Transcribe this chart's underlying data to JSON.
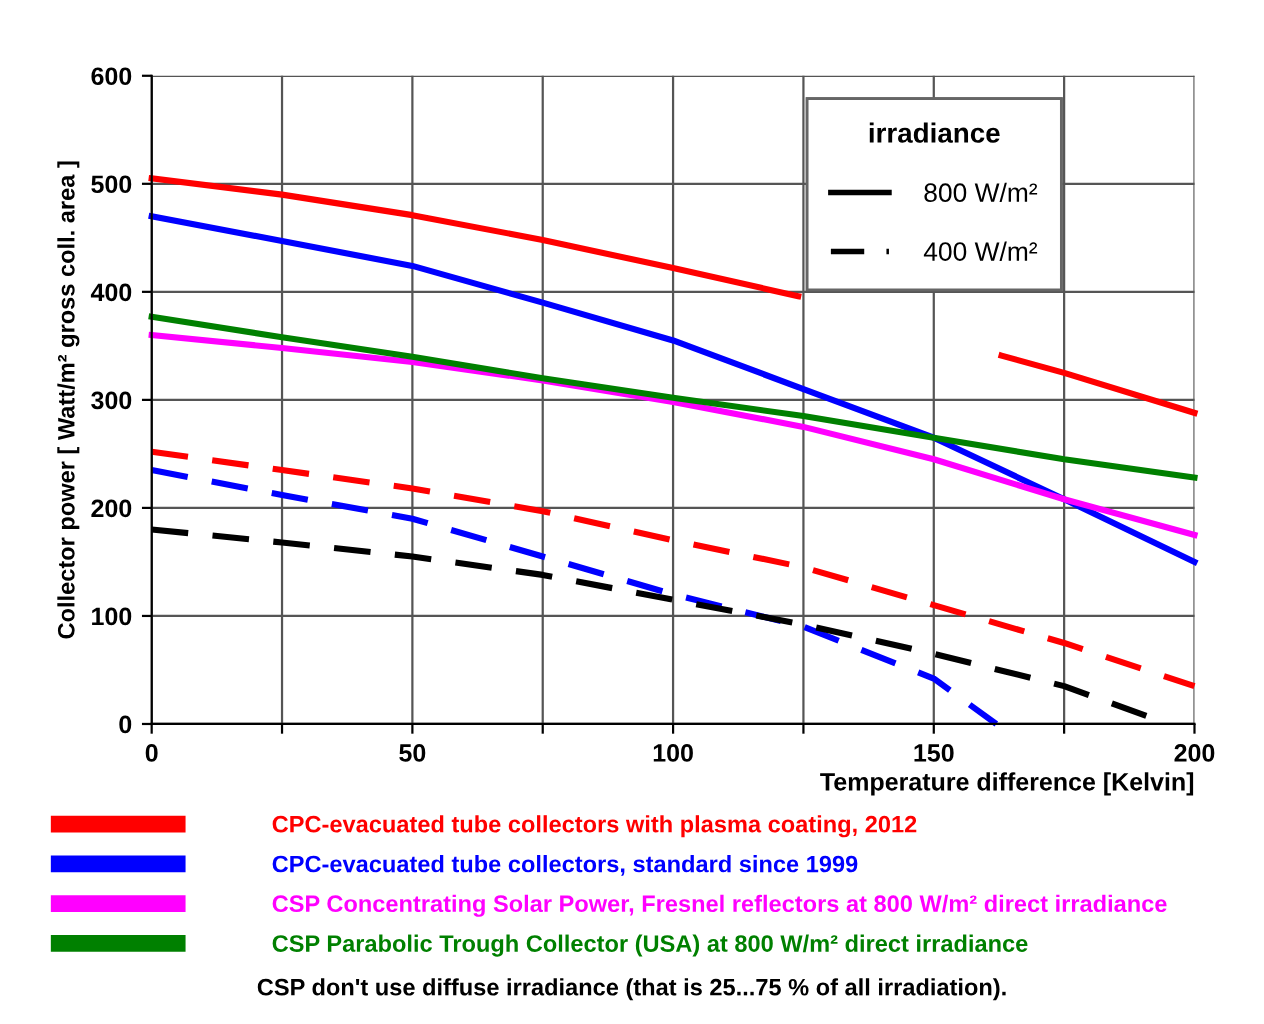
{
  "chart_data": {
    "type": "line",
    "xlabel": "Temperature difference [Kelvin]",
    "ylabel": "Collector power [ Watt/m² gross coll. area ]",
    "xlim": [
      0,
      200
    ],
    "ylim": [
      0,
      600
    ],
    "xticks": [
      0,
      {
        "value": 25,
        "label": null
      },
      50,
      {
        "value": 75,
        "label": null
      },
      100,
      {
        "value": 125,
        "label": null
      },
      150,
      {
        "value": 175,
        "label": null
      },
      200
    ],
    "yticks": [
      0,
      100,
      200,
      300,
      400,
      500,
      600
    ],
    "grid": true,
    "legend": "bottom",
    "legend_title": "irradiance",
    "series": [
      {
        "name": "CPC-evacuated tube collectors with plasma coating, 2012",
        "color": "#ff0000",
        "line_style": "solid",
        "x": [
          0,
          25,
          50,
          75,
          100,
          124,
          140,
          163,
          175,
          200
        ],
        "values": [
          505,
          490,
          471,
          448,
          422,
          396,
          null,
          341,
          325,
          288
        ]
      },
      {
        "name": "CPC-evacuated tube collectors, standard since 1999",
        "color": "#0000ff",
        "line_style": "solid",
        "x": [
          0,
          25,
          50,
          75,
          100,
          125,
          150,
          175,
          200
        ],
        "values": [
          470,
          447,
          424,
          390,
          355,
          310,
          265,
          208,
          150
        ]
      },
      {
        "name": "CSP Concentrating Solar Power, Fresnel reflectors at 800 W/m² direct irradiance",
        "color": "#ff00ff",
        "line_style": "solid",
        "x": [
          0,
          25,
          50,
          75,
          100,
          125,
          150,
          175,
          200
        ],
        "values": [
          360,
          348,
          335,
          318,
          298,
          275,
          245,
          208,
          175
        ]
      },
      {
        "name": "CSP Parabolic Trough Collector (USA) at 800 W/m² direct irradiance",
        "color": "#008000",
        "line_style": "solid",
        "x": [
          0,
          25,
          50,
          75,
          100,
          125,
          150,
          175,
          200
        ],
        "values": [
          377,
          358,
          340,
          320,
          302,
          285,
          265,
          245,
          228
        ]
      },
      {
        "color": "#ff0000",
        "line_style": "dashed",
        "x": [
          0,
          25,
          50,
          75,
          100,
          125,
          150,
          175,
          200
        ],
        "values": [
          252,
          235,
          218,
          197,
          170,
          145,
          110,
          75,
          35
        ]
      },
      {
        "color": "#0000ff",
        "line_style": "dashed",
        "x": [
          0,
          25,
          50,
          75,
          100,
          125,
          150,
          162
        ],
        "values": [
          235,
          212,
          190,
          155,
          120,
          90,
          42,
          0
        ]
      },
      {
        "color": "#000000",
        "line_style": "dashed",
        "x": [
          0,
          25,
          50,
          75,
          100,
          125,
          150,
          175,
          195
        ],
        "values": [
          180,
          168,
          155,
          138,
          115,
          92,
          65,
          35,
          0
        ]
      }
    ],
    "annotations": [
      "800 W/m²",
      "400 W/m²",
      "CSP don't use diffuse irradiance (that is 25...75 % of all irradiation)."
    ]
  }
}
